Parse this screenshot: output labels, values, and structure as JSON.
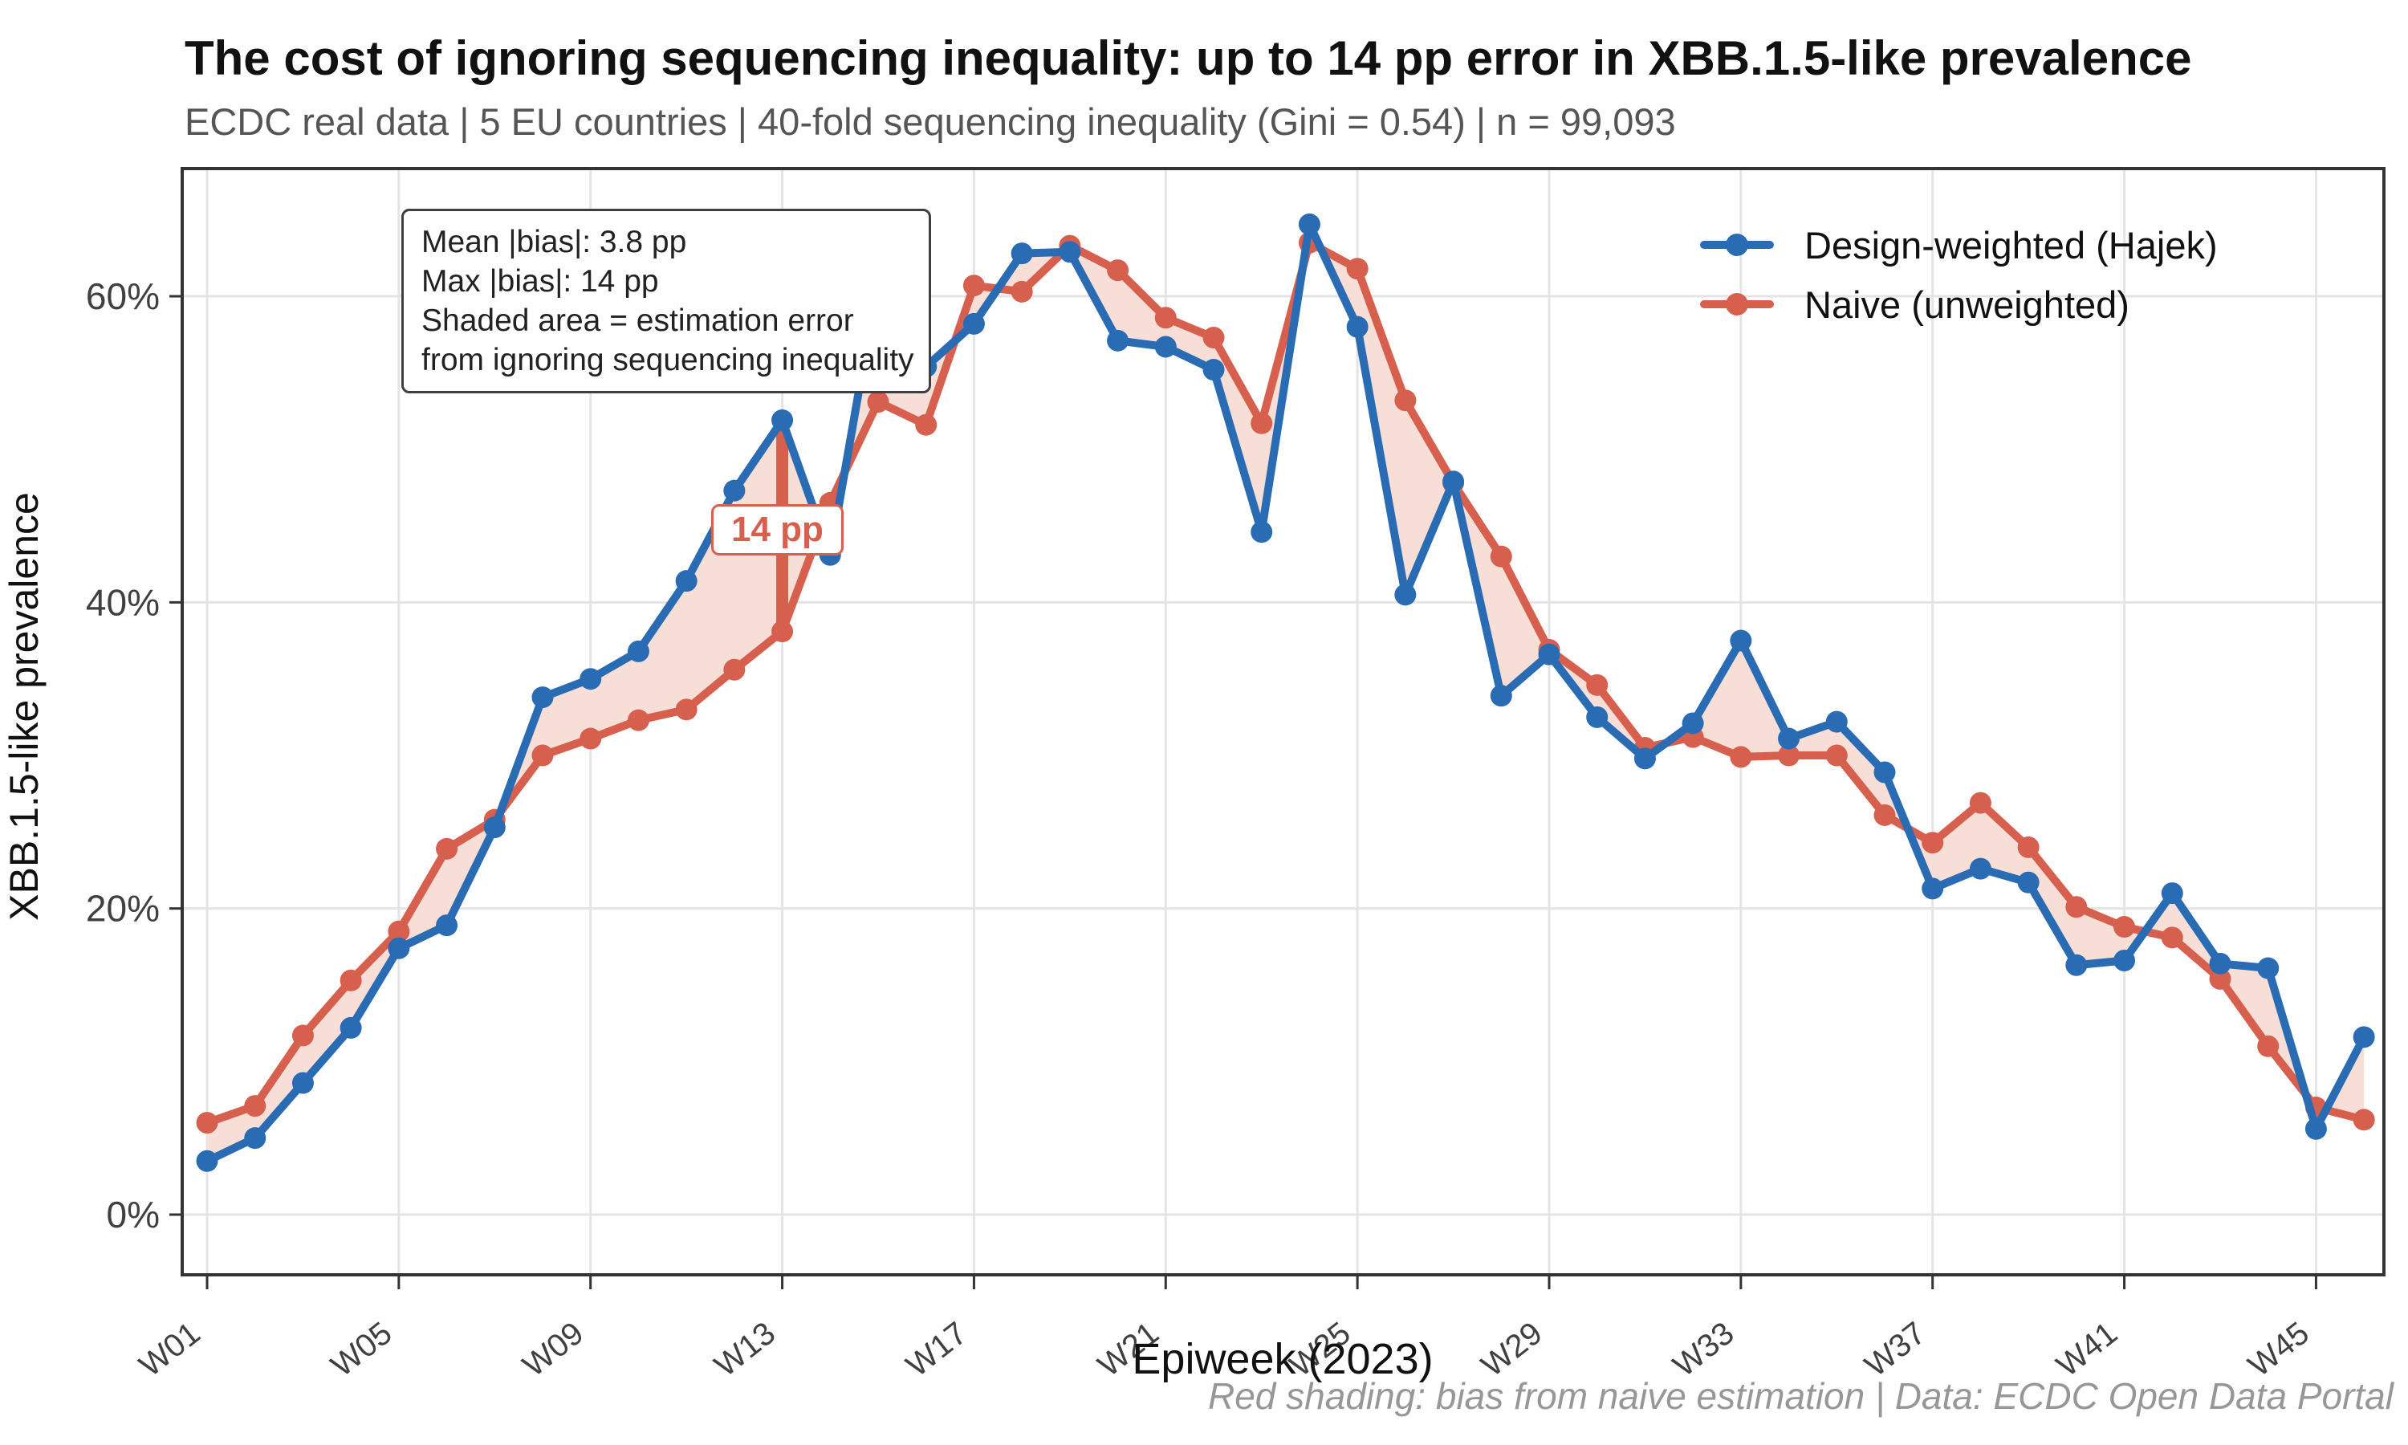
{
  "header": {
    "title": "The cost of ignoring sequencing inequality: up to 14 pp error in XBB.1.5-like prevalence",
    "subtitle": "ECDC real data | 5 EU countries | 40-fold sequencing inequality (Gini = 0.54) | n = 99,093"
  },
  "annotation": {
    "line1": "Mean |bias|: 3.8 pp",
    "line2": "Max |bias|: 14 pp",
    "line3": "Shaded area = estimation error",
    "line4": "from ignoring sequencing inequality"
  },
  "bias_label": "14 pp",
  "axes": {
    "x_title": "Epiweek (2023)",
    "y_title": "XBB.1.5-like prevalence"
  },
  "caption": "Red shading: bias from naive estimation | Data: ECDC Open Data Portal",
  "colors": {
    "blue": "#2a6cb4",
    "red": "#d6604d",
    "band": "#f7ded7",
    "grid": "#e4e4e4",
    "axis": "#333333",
    "tick_text": "#404040"
  },
  "chart_data": {
    "type": "line",
    "title": "The cost of ignoring sequencing inequality: up to 14 pp error in XBB.1.5-like prevalence",
    "xlabel": "Epiweek (2023)",
    "ylabel": "XBB.1.5-like prevalence",
    "grid": true,
    "legend_position": "top-right",
    "ylim": [
      -4,
      68
    ],
    "weeks": [
      1,
      2,
      3,
      4,
      5,
      6,
      7,
      8,
      9,
      10,
      11,
      12,
      13,
      14,
      15,
      16,
      17,
      18,
      19,
      20,
      21,
      22,
      23,
      24,
      25,
      26,
      27,
      28,
      29,
      30,
      31,
      32,
      33,
      34,
      35,
      36,
      37,
      38,
      39,
      40,
      41,
      42,
      43,
      44,
      45,
      46
    ],
    "x_ticks": [
      {
        "week": 1,
        "label": "W01"
      },
      {
        "week": 5,
        "label": "W05"
      },
      {
        "week": 9,
        "label": "W09"
      },
      {
        "week": 13,
        "label": "W13"
      },
      {
        "week": 17,
        "label": "W17"
      },
      {
        "week": 21,
        "label": "W21"
      },
      {
        "week": 25,
        "label": "W25"
      },
      {
        "week": 29,
        "label": "W29"
      },
      {
        "week": 33,
        "label": "W33"
      },
      {
        "week": 37,
        "label": "W37"
      },
      {
        "week": 41,
        "label": "W41"
      },
      {
        "week": 45,
        "label": "W45"
      }
    ],
    "y_ticks": [
      {
        "value": 0,
        "label": "0%"
      },
      {
        "value": 20,
        "label": "20%"
      },
      {
        "value": 40,
        "label": "40%"
      },
      {
        "value": 60,
        "label": "60%"
      }
    ],
    "series": [
      {
        "name": "Design-weighted (Hajek)",
        "color": "#2a6cb4",
        "values": [
          3.5,
          5.0,
          8.6,
          12.2,
          17.4,
          18.9,
          25.3,
          33.8,
          35.0,
          36.8,
          41.4,
          47.3,
          51.9,
          43.1,
          61.0,
          55.4,
          58.2,
          62.8,
          62.9,
          57.1,
          56.7,
          55.2,
          44.6,
          64.7,
          58.0,
          40.5,
          47.9,
          33.9,
          36.6,
          32.5,
          29.8,
          32.1,
          37.5,
          31.1,
          32.2,
          28.9,
          21.3,
          22.6,
          21.7,
          16.3,
          16.6,
          21.0,
          16.4,
          16.1,
          5.6,
          11.6
        ]
      },
      {
        "name": "Naive (unweighted)",
        "color": "#d6604d",
        "values": [
          6.0,
          7.1,
          11.7,
          15.3,
          18.5,
          23.9,
          25.8,
          30.0,
          31.1,
          32.3,
          33.0,
          35.6,
          38.1,
          46.5,
          53.1,
          51.6,
          60.7,
          60.3,
          63.3,
          61.7,
          58.6,
          57.3,
          51.7,
          63.5,
          61.8,
          53.2,
          47.8,
          43.0,
          36.9,
          34.6,
          30.5,
          31.2,
          29.9,
          30.0,
          30.0,
          26.1,
          24.3,
          26.9,
          24.0,
          20.1,
          18.8,
          18.1,
          15.4,
          11.0,
          7.0,
          6.2
        ]
      }
    ],
    "band_between_series": [
      0,
      1
    ],
    "band_color": "#f7ded7",
    "bias_arrow": {
      "week": 13,
      "from_pct": 38.1,
      "to_pct": 51.9,
      "label": "14 pp"
    }
  }
}
